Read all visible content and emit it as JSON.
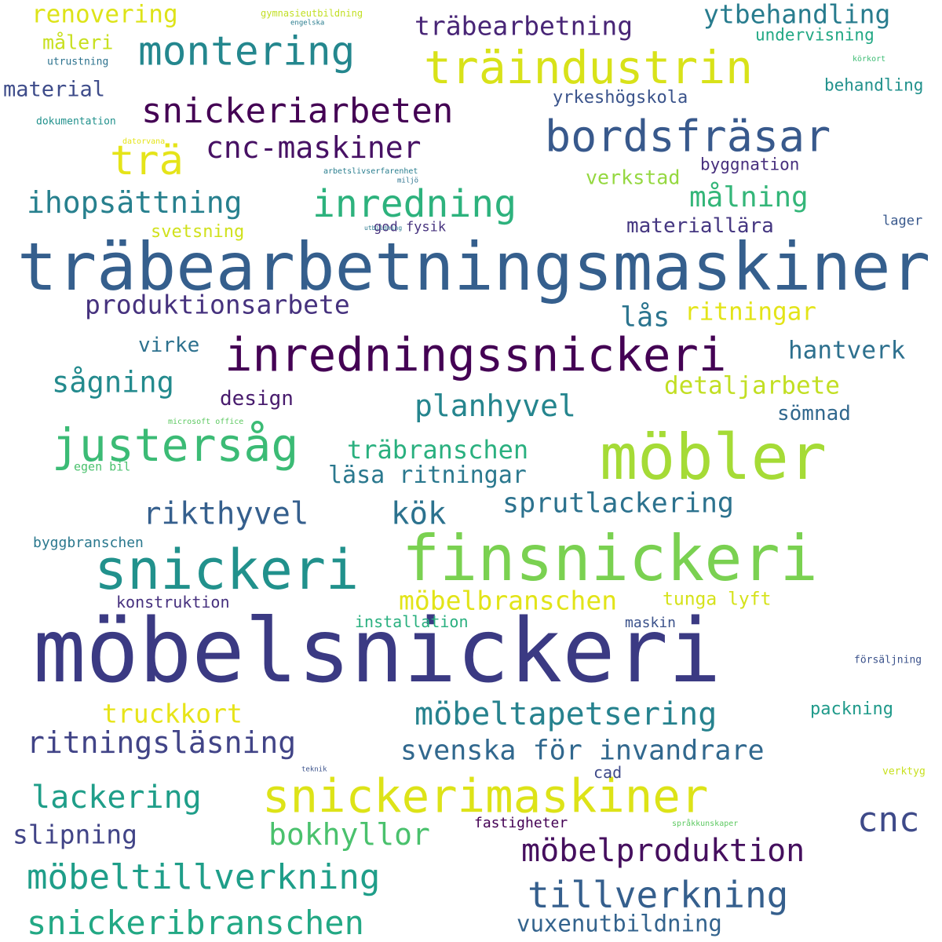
{
  "words": [
    {
      "text": "möbelsnickeri",
      "weight": 100,
      "color": "#3b3a83"
    },
    {
      "text": "träbearbetningsmaskiner",
      "weight": 90,
      "color": "#355f8d"
    },
    {
      "text": "finsnickeri",
      "weight": 85,
      "color": "#7ad151"
    },
    {
      "text": "möbler",
      "weight": 85,
      "color": "#a5db36"
    },
    {
      "text": "snickeri",
      "weight": 75,
      "color": "#21918c"
    },
    {
      "text": "inredningssnickeri",
      "weight": 72,
      "color": "#440154"
    },
    {
      "text": "snickerimaskiner",
      "weight": 72,
      "color": "#dde318"
    },
    {
      "text": "justersåg",
      "weight": 70,
      "color": "#3bbb75"
    },
    {
      "text": "träindustrin",
      "weight": 68,
      "color": "#d8e219"
    },
    {
      "text": "bordsfräsar",
      "weight": 65,
      "color": "#38598c"
    },
    {
      "text": "montering",
      "weight": 60,
      "color": "#24878e"
    },
    {
      "text": "trä",
      "weight": 58,
      "color": "#e5e419"
    },
    {
      "text": "inredning",
      "weight": 55,
      "color": "#2db27d"
    },
    {
      "text": "tillverkning",
      "weight": 52,
      "color": "#355f8d"
    },
    {
      "text": "snickeriarbeten",
      "weight": 52,
      "color": "#440154"
    },
    {
      "text": "möbeltillverkning",
      "weight": 50,
      "color": "#1f9e89"
    },
    {
      "text": "snickeribranschen",
      "weight": 50,
      "color": "#22a884"
    },
    {
      "text": "cnc",
      "weight": 50,
      "color": "#3e4a89"
    },
    {
      "text": "möbelproduktion",
      "weight": 48,
      "color": "#450f5e"
    },
    {
      "text": "lackering",
      "weight": 48,
      "color": "#1f9e89"
    },
    {
      "text": "cnc-maskiner",
      "weight": 46,
      "color": "#471164"
    },
    {
      "text": "ritningsläsning",
      "weight": 45,
      "color": "#414487"
    },
    {
      "text": "möbeltapetsering",
      "weight": 45,
      "color": "#26828e"
    },
    {
      "text": "planhyvel",
      "weight": 42,
      "color": "#25858e"
    },
    {
      "text": "rikthyvel",
      "weight": 40,
      "color": "#355f8d"
    },
    {
      "text": "kök",
      "weight": 40,
      "color": "#2c728e"
    },
    {
      "text": "bokhyllor",
      "weight": 40,
      "color": "#4ac16d"
    },
    {
      "text": "ihopsättning",
      "weight": 40,
      "color": "#27808e"
    },
    {
      "text": "svenska för invandrare",
      "weight": 38,
      "color": "#31688e"
    },
    {
      "text": "sprutlackering",
      "weight": 38,
      "color": "#2c728e"
    },
    {
      "text": "sågning",
      "weight": 38,
      "color": "#238a8d"
    },
    {
      "text": "målning",
      "weight": 38,
      "color": "#34b679"
    },
    {
      "text": "produktionsarbete",
      "weight": 36,
      "color": "#46327e"
    },
    {
      "text": "slipning",
      "weight": 36,
      "color": "#414487"
    },
    {
      "text": "ytbehandling",
      "weight": 35,
      "color": "#287c8e"
    },
    {
      "text": "träbearbetning",
      "weight": 35,
      "color": "#482576"
    },
    {
      "text": "möbelbranschen",
      "weight": 35,
      "color": "#e2e418"
    },
    {
      "text": "truckkort",
      "weight": 34,
      "color": "#e7e419"
    },
    {
      "text": "träbranschen",
      "weight": 34,
      "color": "#2ab07f"
    },
    {
      "text": "detaljarbete",
      "weight": 33,
      "color": "#c2df23"
    },
    {
      "text": "ritningar",
      "weight": 33,
      "color": "#e3e418"
    },
    {
      "text": "läsa ritningar",
      "weight": 32,
      "color": "#2a788e"
    },
    {
      "text": "lås",
      "weight": 32,
      "color": "#2b748e"
    },
    {
      "text": "hantverk",
      "weight": 32,
      "color": "#2d708e"
    },
    {
      "text": "renovering",
      "weight": 31,
      "color": "#dde318"
    },
    {
      "text": "vuxenutbildning",
      "weight": 31,
      "color": "#33638d"
    },
    {
      "text": "materiallära",
      "weight": 27,
      "color": "#453781"
    },
    {
      "text": "verkstad",
      "weight": 27,
      "color": "#95d840"
    },
    {
      "text": "måleri",
      "weight": 27,
      "color": "#c8e020"
    },
    {
      "text": "material",
      "weight": 27,
      "color": "#3e4c8a"
    },
    {
      "text": "virke",
      "weight": 27,
      "color": "#2d718e"
    },
    {
      "text": "design",
      "weight": 27,
      "color": "#481b6d"
    },
    {
      "text": "sömnad",
      "weight": 27,
      "color": "#31688e"
    },
    {
      "text": "tunga lyft",
      "weight": 25,
      "color": "#d5e21a"
    },
    {
      "text": "yrkeshögskola",
      "weight": 24,
      "color": "#3a538b"
    },
    {
      "text": "svetsning",
      "weight": 24,
      "color": "#d0e11c"
    },
    {
      "text": "byggnation",
      "weight": 23,
      "color": "#472f7d"
    },
    {
      "text": "undervisning",
      "weight": 22,
      "color": "#22a884"
    },
    {
      "text": "behandling",
      "weight": 22,
      "color": "#21918c"
    },
    {
      "text": "packning",
      "weight": 22,
      "color": "#1f9a8a"
    },
    {
      "text": "installation",
      "weight": 21,
      "color": "#2ab07f"
    },
    {
      "text": "konstruktion",
      "weight": 21,
      "color": "#46307e"
    },
    {
      "text": "cad",
      "weight": 21,
      "color": "#3e4a89"
    },
    {
      "text": "fastigheter",
      "weight": 19,
      "color": "#440154"
    },
    {
      "text": "maskin",
      "weight": 19,
      "color": "#3b528b"
    },
    {
      "text": "byggbranschen",
      "weight": 19,
      "color": "#2a788e"
    },
    {
      "text": "god fysik",
      "weight": 18,
      "color": "#46327e"
    },
    {
      "text": "lager",
      "weight": 18,
      "color": "#38588c"
    },
    {
      "text": "egen bil",
      "weight": 16,
      "color": "#4ac16d"
    },
    {
      "text": "dokumentation",
      "weight": 14,
      "color": "#21918c"
    },
    {
      "text": "utrustning",
      "weight": 14,
      "color": "#2c728e"
    },
    {
      "text": "försäljning",
      "weight": 14,
      "color": "#3b528b"
    },
    {
      "text": "verktyg",
      "weight": 13,
      "color": "#c8e020"
    },
    {
      "text": "gymnasieutbildning",
      "weight": 12,
      "color": "#c2df23"
    },
    {
      "text": "microsoft office",
      "weight": 11,
      "color": "#5ec962"
    },
    {
      "text": "körkort",
      "weight": 11,
      "color": "#3dbc74"
    },
    {
      "text": "arbetslivserfarenhet",
      "weight": 11,
      "color": "#287d8e"
    },
    {
      "text": "datorvana",
      "weight": 10,
      "color": "#e5e419"
    },
    {
      "text": "språkkunskaper",
      "weight": 10,
      "color": "#5ec962"
    },
    {
      "text": "engelska",
      "weight": 9,
      "color": "#287c8e"
    },
    {
      "text": "miljö",
      "weight": 9,
      "color": "#2c728e"
    },
    {
      "text": "teknik",
      "weight": 9,
      "color": "#3b528b"
    },
    {
      "text": "utbildning",
      "weight": 8,
      "color": "#2a788e"
    }
  ]
}
